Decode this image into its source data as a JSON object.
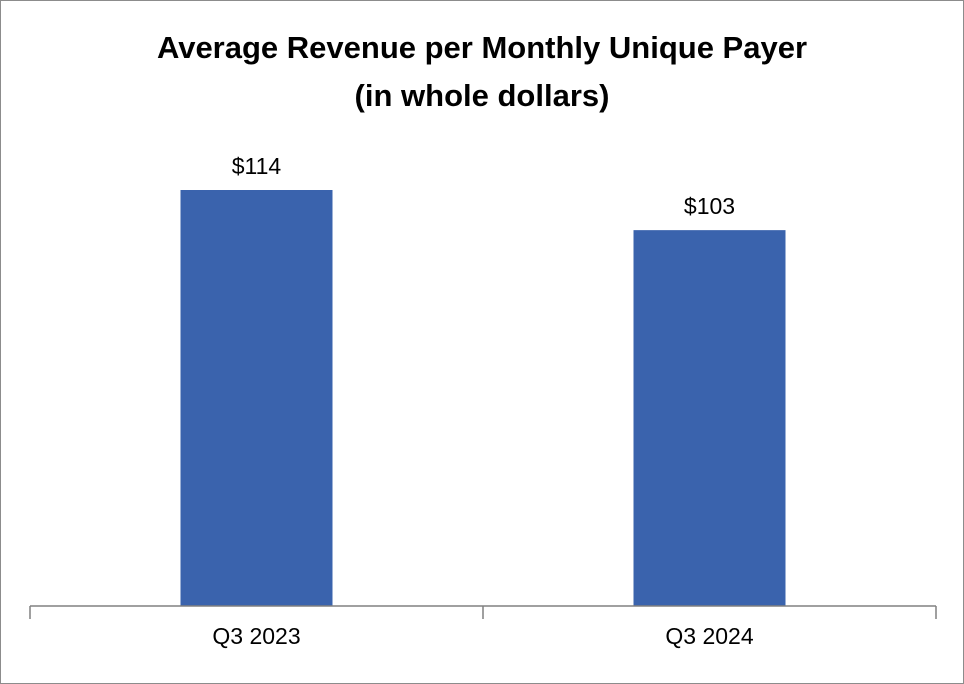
{
  "chart_data": {
    "type": "bar",
    "title": [
      "Average Revenue per Monthly Unique Payer",
      "(in whole dollars)"
    ],
    "xlabel": "",
    "ylabel": "",
    "categories": [
      "Q3 2023",
      "Q3 2024"
    ],
    "values": [
      114,
      103
    ],
    "data_labels": [
      "$114",
      "$103"
    ],
    "ylim": [
      0,
      114
    ],
    "grid": false,
    "legend": "none",
    "colors": {
      "bar": "#3a63ad",
      "axis": "#808080",
      "border": "#8c8c8c",
      "text": "#000000"
    }
  }
}
